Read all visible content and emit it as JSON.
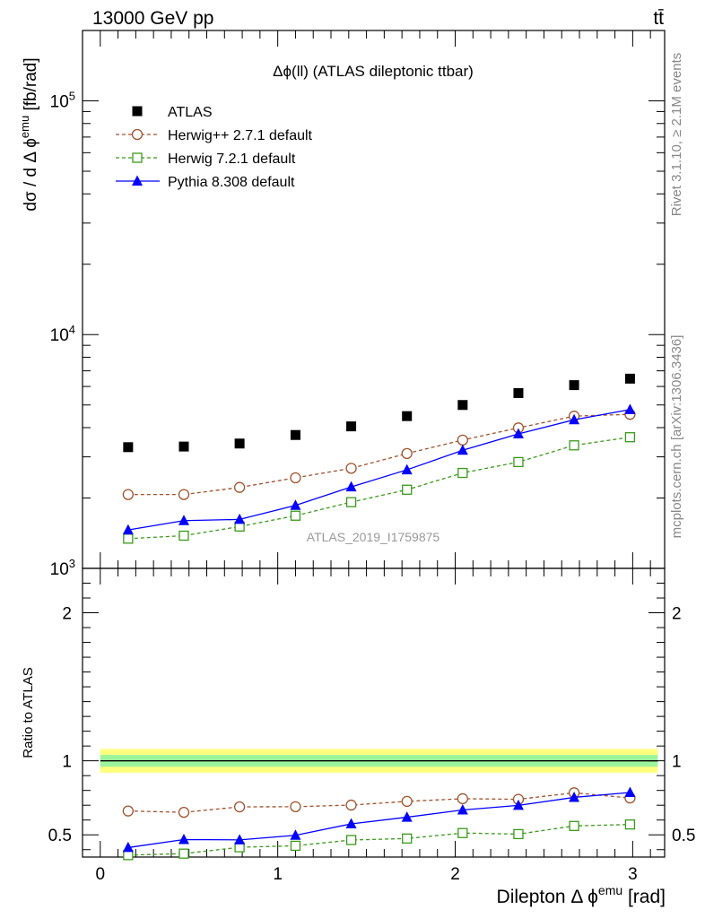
{
  "header": {
    "left": "13000 GeV pp",
    "right": "tt̄"
  },
  "side_labels": {
    "rivet": "Rivet 3.1.10, ≥ 2.1M events",
    "mcplots": "mcplots.cern.ch [arXiv:1306.3436]"
  },
  "chart_data": {
    "type": "scatter",
    "title": "Δϕ(ll) (ATLAS dileptonic ttbar)",
    "watermark": "ATLAS_2019_I1759875",
    "xlabel": "Dilepton Δ ϕ^emu [rad]",
    "xlim": [
      -0.1,
      3.18
    ],
    "x_ticks": [
      0,
      1,
      2,
      3
    ],
    "main": {
      "ylabel": "dσ / dΔϕ^emu [fb/rad]",
      "yscale": "log",
      "ylim": [
        1000,
        200000
      ],
      "y_tick_labels": [
        {
          "value": 1000,
          "label": "10",
          "exp": "3"
        },
        {
          "value": 10000,
          "label": "10",
          "exp": "4"
        },
        {
          "value": 100000,
          "label": "10",
          "exp": "5"
        }
      ]
    },
    "ratio": {
      "ylabel": "Ratio to ATLAS",
      "ylim": [
        0.35,
        2.3
      ],
      "y_ticks": [
        0.5,
        1,
        2
      ],
      "y_tick_labels": [
        "0.5",
        "1",
        "2"
      ],
      "band_inner": 0.04,
      "band_outer": 0.08
    },
    "x": [
      0.157,
      0.471,
      0.785,
      1.1,
      1.414,
      1.728,
      2.042,
      2.356,
      2.67,
      2.985
    ],
    "legend_position": "top-left",
    "series": [
      {
        "name": "ATLAS",
        "style": "data",
        "color": "#000000",
        "values": [
          3300,
          3320,
          3420,
          3720,
          4050,
          4480,
          5000,
          5620,
          6080,
          6480
        ],
        "ratio": [
          1,
          1,
          1,
          1,
          1,
          1,
          1,
          1,
          1,
          1
        ]
      },
      {
        "name": "Herwig++ 2.7.1 default",
        "style": "dashed-circle",
        "color": "#a0522d",
        "values": [
          2070,
          2070,
          2220,
          2440,
          2680,
          3100,
          3540,
          3990,
          4480,
          4560
        ],
        "ratio": [
          0.661,
          0.652,
          0.689,
          0.69,
          0.701,
          0.726,
          0.744,
          0.74,
          0.784,
          0.749
        ]
      },
      {
        "name": "Herwig 7.2.1 default",
        "style": "dashed-square",
        "color": "#3a9a1a",
        "values": [
          1340,
          1380,
          1510,
          1680,
          1920,
          2170,
          2560,
          2850,
          3360,
          3640
        ],
        "ratio": [
          0.363,
          0.373,
          0.416,
          0.426,
          0.465,
          0.475,
          0.512,
          0.505,
          0.56,
          0.57
        ]
      },
      {
        "name": "Pythia 8.308 default",
        "style": "solid-triangle",
        "color": "#0000ff",
        "values": [
          1460,
          1600,
          1620,
          1860,
          2230,
          2640,
          3200,
          3760,
          4320,
          4780
        ],
        "ratio": [
          0.414,
          0.468,
          0.466,
          0.497,
          0.574,
          0.619,
          0.668,
          0.699,
          0.753,
          0.786
        ]
      }
    ]
  }
}
